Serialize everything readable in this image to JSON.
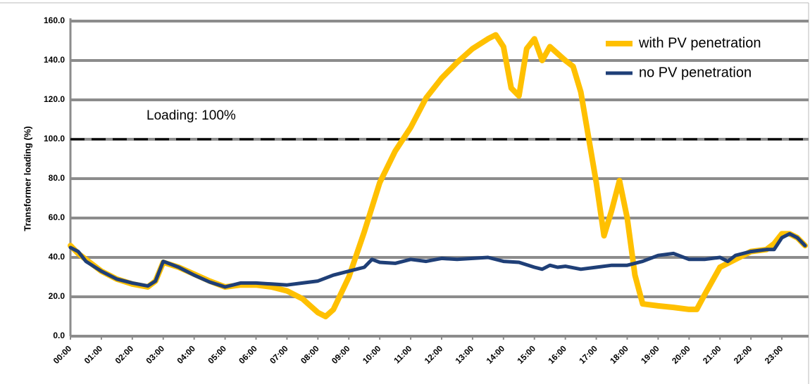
{
  "chart_data": {
    "type": "line",
    "y_label": "Transformer loading (%)",
    "xlim": [
      0,
      23.75
    ],
    "xticks": [
      {
        "value": 0,
        "label": "00:00"
      },
      {
        "value": 1,
        "label": "01:00"
      },
      {
        "value": 2,
        "label": "02:00"
      },
      {
        "value": 3,
        "label": "03:00"
      },
      {
        "value": 4,
        "label": "04:00"
      },
      {
        "value": 5,
        "label": "05:00"
      },
      {
        "value": 6,
        "label": "06:00"
      },
      {
        "value": 7,
        "label": "07:00"
      },
      {
        "value": 8,
        "label": "08:00"
      },
      {
        "value": 9,
        "label": "09:00"
      },
      {
        "value": 10,
        "label": "10:00"
      },
      {
        "value": 11,
        "label": "11:00"
      },
      {
        "value": 12,
        "label": "12:00"
      },
      {
        "value": 13,
        "label": "13:00"
      },
      {
        "value": 14,
        "label": "14:00"
      },
      {
        "value": 15,
        "label": "15:00"
      },
      {
        "value": 16,
        "label": "16:00"
      },
      {
        "value": 17,
        "label": "17:00"
      },
      {
        "value": 18,
        "label": "18:00"
      },
      {
        "value": 19,
        "label": "19:00"
      },
      {
        "value": 20,
        "label": "20:00"
      },
      {
        "value": 21,
        "label": "21:00"
      },
      {
        "value": 22,
        "label": "22:00"
      },
      {
        "value": 23,
        "label": "23:00"
      }
    ],
    "ylim": [
      0,
      160
    ],
    "yticks": [
      {
        "value": 0,
        "label": "0.0"
      },
      {
        "value": 20,
        "label": "20.0"
      },
      {
        "value": 40,
        "label": "40.0"
      },
      {
        "value": 60,
        "label": "60.0"
      },
      {
        "value": 80,
        "label": "80.0"
      },
      {
        "value": 100,
        "label": "100.0"
      },
      {
        "value": 120,
        "label": "120.0"
      },
      {
        "value": 140,
        "label": "140.0"
      },
      {
        "value": 160,
        "label": "160.0"
      }
    ],
    "grid": true,
    "legend": "upper right",
    "reference_line": {
      "value": 100,
      "label": "Loading: 100%",
      "color": "#000000"
    },
    "series": [
      {
        "name": "with PV penetration",
        "color": "#FFC000",
        "x": [
          0,
          0.25,
          0.5,
          1,
          1.5,
          2,
          2.5,
          2.75,
          3,
          3.5,
          4,
          4.5,
          5,
          5.5,
          6,
          6.5,
          7,
          7.5,
          8,
          8.25,
          8.5,
          9,
          9.5,
          10,
          10.5,
          11,
          11.5,
          12,
          12.5,
          13,
          13.5,
          13.75,
          14,
          14.25,
          14.5,
          14.75,
          15,
          15.25,
          15.5,
          16,
          16.25,
          16.5,
          17,
          17.25,
          17.5,
          17.75,
          18,
          18.25,
          18.5,
          19,
          19.5,
          20,
          20.25,
          20.5,
          21,
          21.5,
          22,
          22.5,
          22.75,
          23,
          23.25,
          23.5,
          23.75
        ],
        "values": [
          46,
          42,
          39,
          33,
          29,
          26.5,
          25,
          28,
          37.5,
          35,
          31.5,
          28,
          25,
          26,
          26,
          25,
          23,
          19,
          12,
          10,
          13.5,
          30,
          53,
          78,
          94,
          106,
          121,
          131,
          139,
          146,
          151,
          153,
          147,
          126,
          122,
          146,
          151,
          140,
          147,
          140,
          137,
          124,
          78,
          51,
          64,
          79,
          60,
          31,
          16.4,
          15.4,
          14.6,
          13.6,
          13.6,
          21,
          35,
          39,
          43,
          44,
          47,
          52,
          52,
          50,
          46
        ]
      },
      {
        "name": "no PV penetration",
        "color": "#1F3F77",
        "x": [
          0,
          0.25,
          0.5,
          1,
          1.5,
          2,
          2.5,
          2.75,
          3,
          3.5,
          4,
          4.5,
          5,
          5.5,
          6,
          6.5,
          7,
          7.5,
          8,
          8.5,
          9,
          9.5,
          9.75,
          10,
          10.5,
          11,
          11.5,
          12,
          12.5,
          13,
          13.5,
          14,
          14.5,
          15,
          15.25,
          15.5,
          15.75,
          16,
          16.5,
          17,
          17.5,
          18,
          18.5,
          19,
          19.5,
          20,
          20.5,
          21,
          21.25,
          21.5,
          22,
          22.5,
          22.75,
          23,
          23.25,
          23.5,
          23.75
        ],
        "values": [
          45,
          43,
          38,
          33,
          29,
          27,
          25.5,
          28,
          38,
          35,
          31,
          27.5,
          25,
          27,
          27,
          26.5,
          26,
          27,
          28,
          31,
          33,
          35,
          39,
          37.5,
          37,
          39,
          38,
          39.5,
          39,
          39.5,
          40,
          38,
          37.5,
          35,
          34,
          36,
          35,
          35.5,
          34,
          35,
          36,
          36,
          38,
          41,
          42,
          39,
          39,
          40,
          38,
          41,
          43,
          44,
          44,
          50,
          52,
          50,
          46
        ]
      }
    ]
  }
}
